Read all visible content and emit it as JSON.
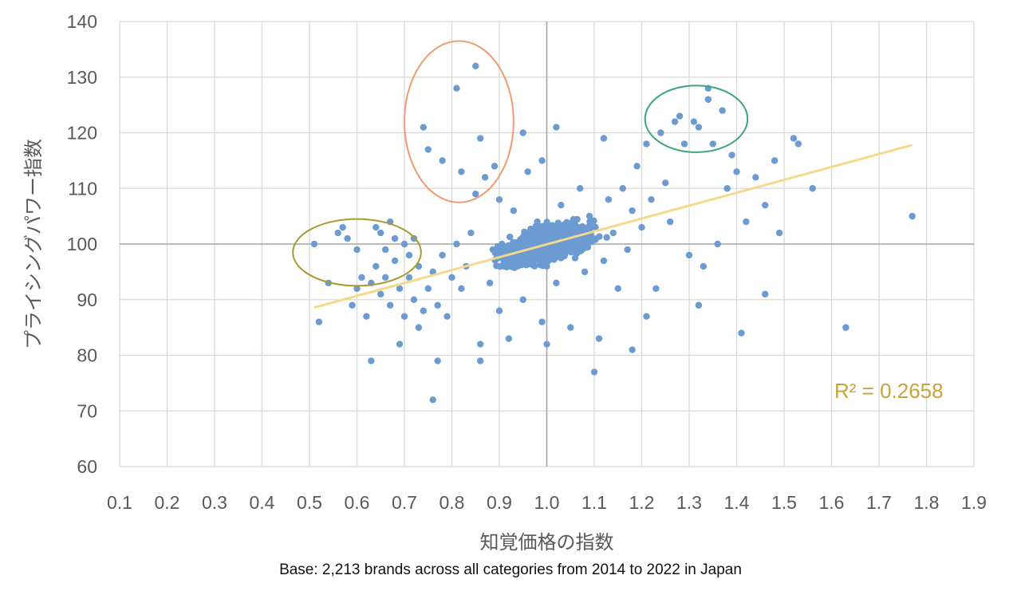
{
  "chart_data": {
    "type": "scatter",
    "xlabel": "知覚価格の指数",
    "ylabel": "プライシングパワー指数",
    "xlim": [
      0.1,
      1.9
    ],
    "ylim": [
      60,
      140
    ],
    "x_ticks": [
      "0.1",
      "0.2",
      "0.3",
      "0.4",
      "0.5",
      "0.6",
      "0.7",
      "0.8",
      "0.9",
      "1.0",
      "1.1",
      "1.2",
      "1.3",
      "1.4",
      "1.5",
      "1.6",
      "1.7",
      "1.8",
      "1.9"
    ],
    "y_ticks": [
      "60",
      "70",
      "80",
      "90",
      "100",
      "110",
      "120",
      "130",
      "140"
    ],
    "grid": true,
    "point_color": "#6b9bd1",
    "trendline": {
      "type": "linear",
      "color": "#f5d98a",
      "from": [
        0.51,
        88.6
      ],
      "to": [
        1.77,
        117.8
      ],
      "r_squared_label": "R² = 0.2658",
      "label_color": "#c9a33a"
    },
    "highlight_ellipses": [
      {
        "color": "#a89a2e",
        "center": [
          0.6,
          98.5
        ],
        "rx": 0.135,
        "ry": 6
      },
      {
        "color": "#f09a70",
        "center": [
          0.815,
          122
        ],
        "rx": 0.115,
        "ry": 14.5
      },
      {
        "color": "#3aa67a",
        "center": [
          1.315,
          122.5
        ],
        "rx": 0.108,
        "ry": 6
      }
    ],
    "points": [
      [
        0.51,
        100
      ],
      [
        0.52,
        86
      ],
      [
        0.54,
        93
      ],
      [
        0.56,
        102
      ],
      [
        0.57,
        103
      ],
      [
        0.58,
        101
      ],
      [
        0.59,
        89
      ],
      [
        0.6,
        99
      ],
      [
        0.6,
        92
      ],
      [
        0.61,
        94
      ],
      [
        0.62,
        87
      ],
      [
        0.63,
        79
      ],
      [
        0.63,
        93
      ],
      [
        0.64,
        103
      ],
      [
        0.64,
        96
      ],
      [
        0.65,
        102
      ],
      [
        0.65,
        91
      ],
      [
        0.66,
        99
      ],
      [
        0.66,
        94
      ],
      [
        0.67,
        104
      ],
      [
        0.67,
        89
      ],
      [
        0.68,
        101
      ],
      [
        0.68,
        97
      ],
      [
        0.69,
        82
      ],
      [
        0.69,
        92
      ],
      [
        0.7,
        100
      ],
      [
        0.7,
        87
      ],
      [
        0.71,
        98
      ],
      [
        0.71,
        94
      ],
      [
        0.72,
        101
      ],
      [
        0.72,
        90
      ],
      [
        0.73,
        85
      ],
      [
        0.73,
        96
      ],
      [
        0.74,
        121
      ],
      [
        0.74,
        88
      ],
      [
        0.75,
        117
      ],
      [
        0.75,
        92
      ],
      [
        0.76,
        72
      ],
      [
        0.76,
        95
      ],
      [
        0.77,
        79
      ],
      [
        0.77,
        89
      ],
      [
        0.78,
        115
      ],
      [
        0.78,
        98
      ],
      [
        0.79,
        87
      ],
      [
        0.8,
        94
      ],
      [
        0.81,
        128
      ],
      [
        0.81,
        100
      ],
      [
        0.82,
        113
      ],
      [
        0.82,
        92
      ],
      [
        0.83,
        96
      ],
      [
        0.84,
        102
      ],
      [
        0.85,
        132
      ],
      [
        0.85,
        109
      ],
      [
        0.86,
        119
      ],
      [
        0.86,
        82
      ],
      [
        0.86,
        79
      ],
      [
        0.87,
        112
      ],
      [
        0.88,
        93
      ],
      [
        0.89,
        114
      ],
      [
        0.9,
        108
      ],
      [
        0.9,
        88
      ],
      [
        0.91,
        96
      ],
      [
        0.92,
        83
      ],
      [
        0.93,
        106
      ],
      [
        0.94,
        100
      ],
      [
        0.95,
        120
      ],
      [
        0.95,
        90
      ],
      [
        0.96,
        113
      ],
      [
        0.97,
        98
      ],
      [
        0.98,
        104
      ],
      [
        0.99,
        115
      ],
      [
        0.99,
        86
      ],
      [
        1.0,
        96
      ],
      [
        1.0,
        82
      ],
      [
        1.01,
        102
      ],
      [
        1.02,
        121
      ],
      [
        1.02,
        93
      ],
      [
        1.03,
        107
      ],
      [
        1.04,
        99
      ],
      [
        1.05,
        85
      ],
      [
        1.06,
        103
      ],
      [
        1.07,
        110
      ],
      [
        1.08,
        95
      ],
      [
        1.09,
        105
      ],
      [
        1.1,
        77
      ],
      [
        1.1,
        101
      ],
      [
        1.11,
        83
      ],
      [
        1.12,
        119
      ],
      [
        1.12,
        97
      ],
      [
        1.13,
        108
      ],
      [
        1.14,
        102
      ],
      [
        1.15,
        92
      ],
      [
        1.16,
        110
      ],
      [
        1.17,
        99
      ],
      [
        1.18,
        81
      ],
      [
        1.18,
        106
      ],
      [
        1.19,
        114
      ],
      [
        1.2,
        103
      ],
      [
        1.21,
        118
      ],
      [
        1.21,
        87
      ],
      [
        1.22,
        108
      ],
      [
        1.23,
        92
      ],
      [
        1.24,
        120
      ],
      [
        1.25,
        111
      ],
      [
        1.26,
        104
      ],
      [
        1.27,
        122
      ],
      [
        1.28,
        123
      ],
      [
        1.29,
        118
      ],
      [
        1.3,
        98
      ],
      [
        1.31,
        122
      ],
      [
        1.32,
        89
      ],
      [
        1.32,
        121
      ],
      [
        1.33,
        96
      ],
      [
        1.34,
        128
      ],
      [
        1.34,
        126
      ],
      [
        1.35,
        118
      ],
      [
        1.36,
        100
      ],
      [
        1.37,
        124
      ],
      [
        1.38,
        110
      ],
      [
        1.39,
        116
      ],
      [
        1.4,
        113
      ],
      [
        1.41,
        84
      ],
      [
        1.42,
        104
      ],
      [
        1.44,
        112
      ],
      [
        1.46,
        91
      ],
      [
        1.46,
        107
      ],
      [
        1.48,
        115
      ],
      [
        1.49,
        102
      ],
      [
        1.52,
        119
      ],
      [
        1.53,
        118
      ],
      [
        1.56,
        110
      ],
      [
        1.63,
        85
      ],
      [
        1.77,
        105
      ]
    ]
  },
  "caption": "Base: 2,213 brands across all categories from 2014 to 2022 in Japan"
}
